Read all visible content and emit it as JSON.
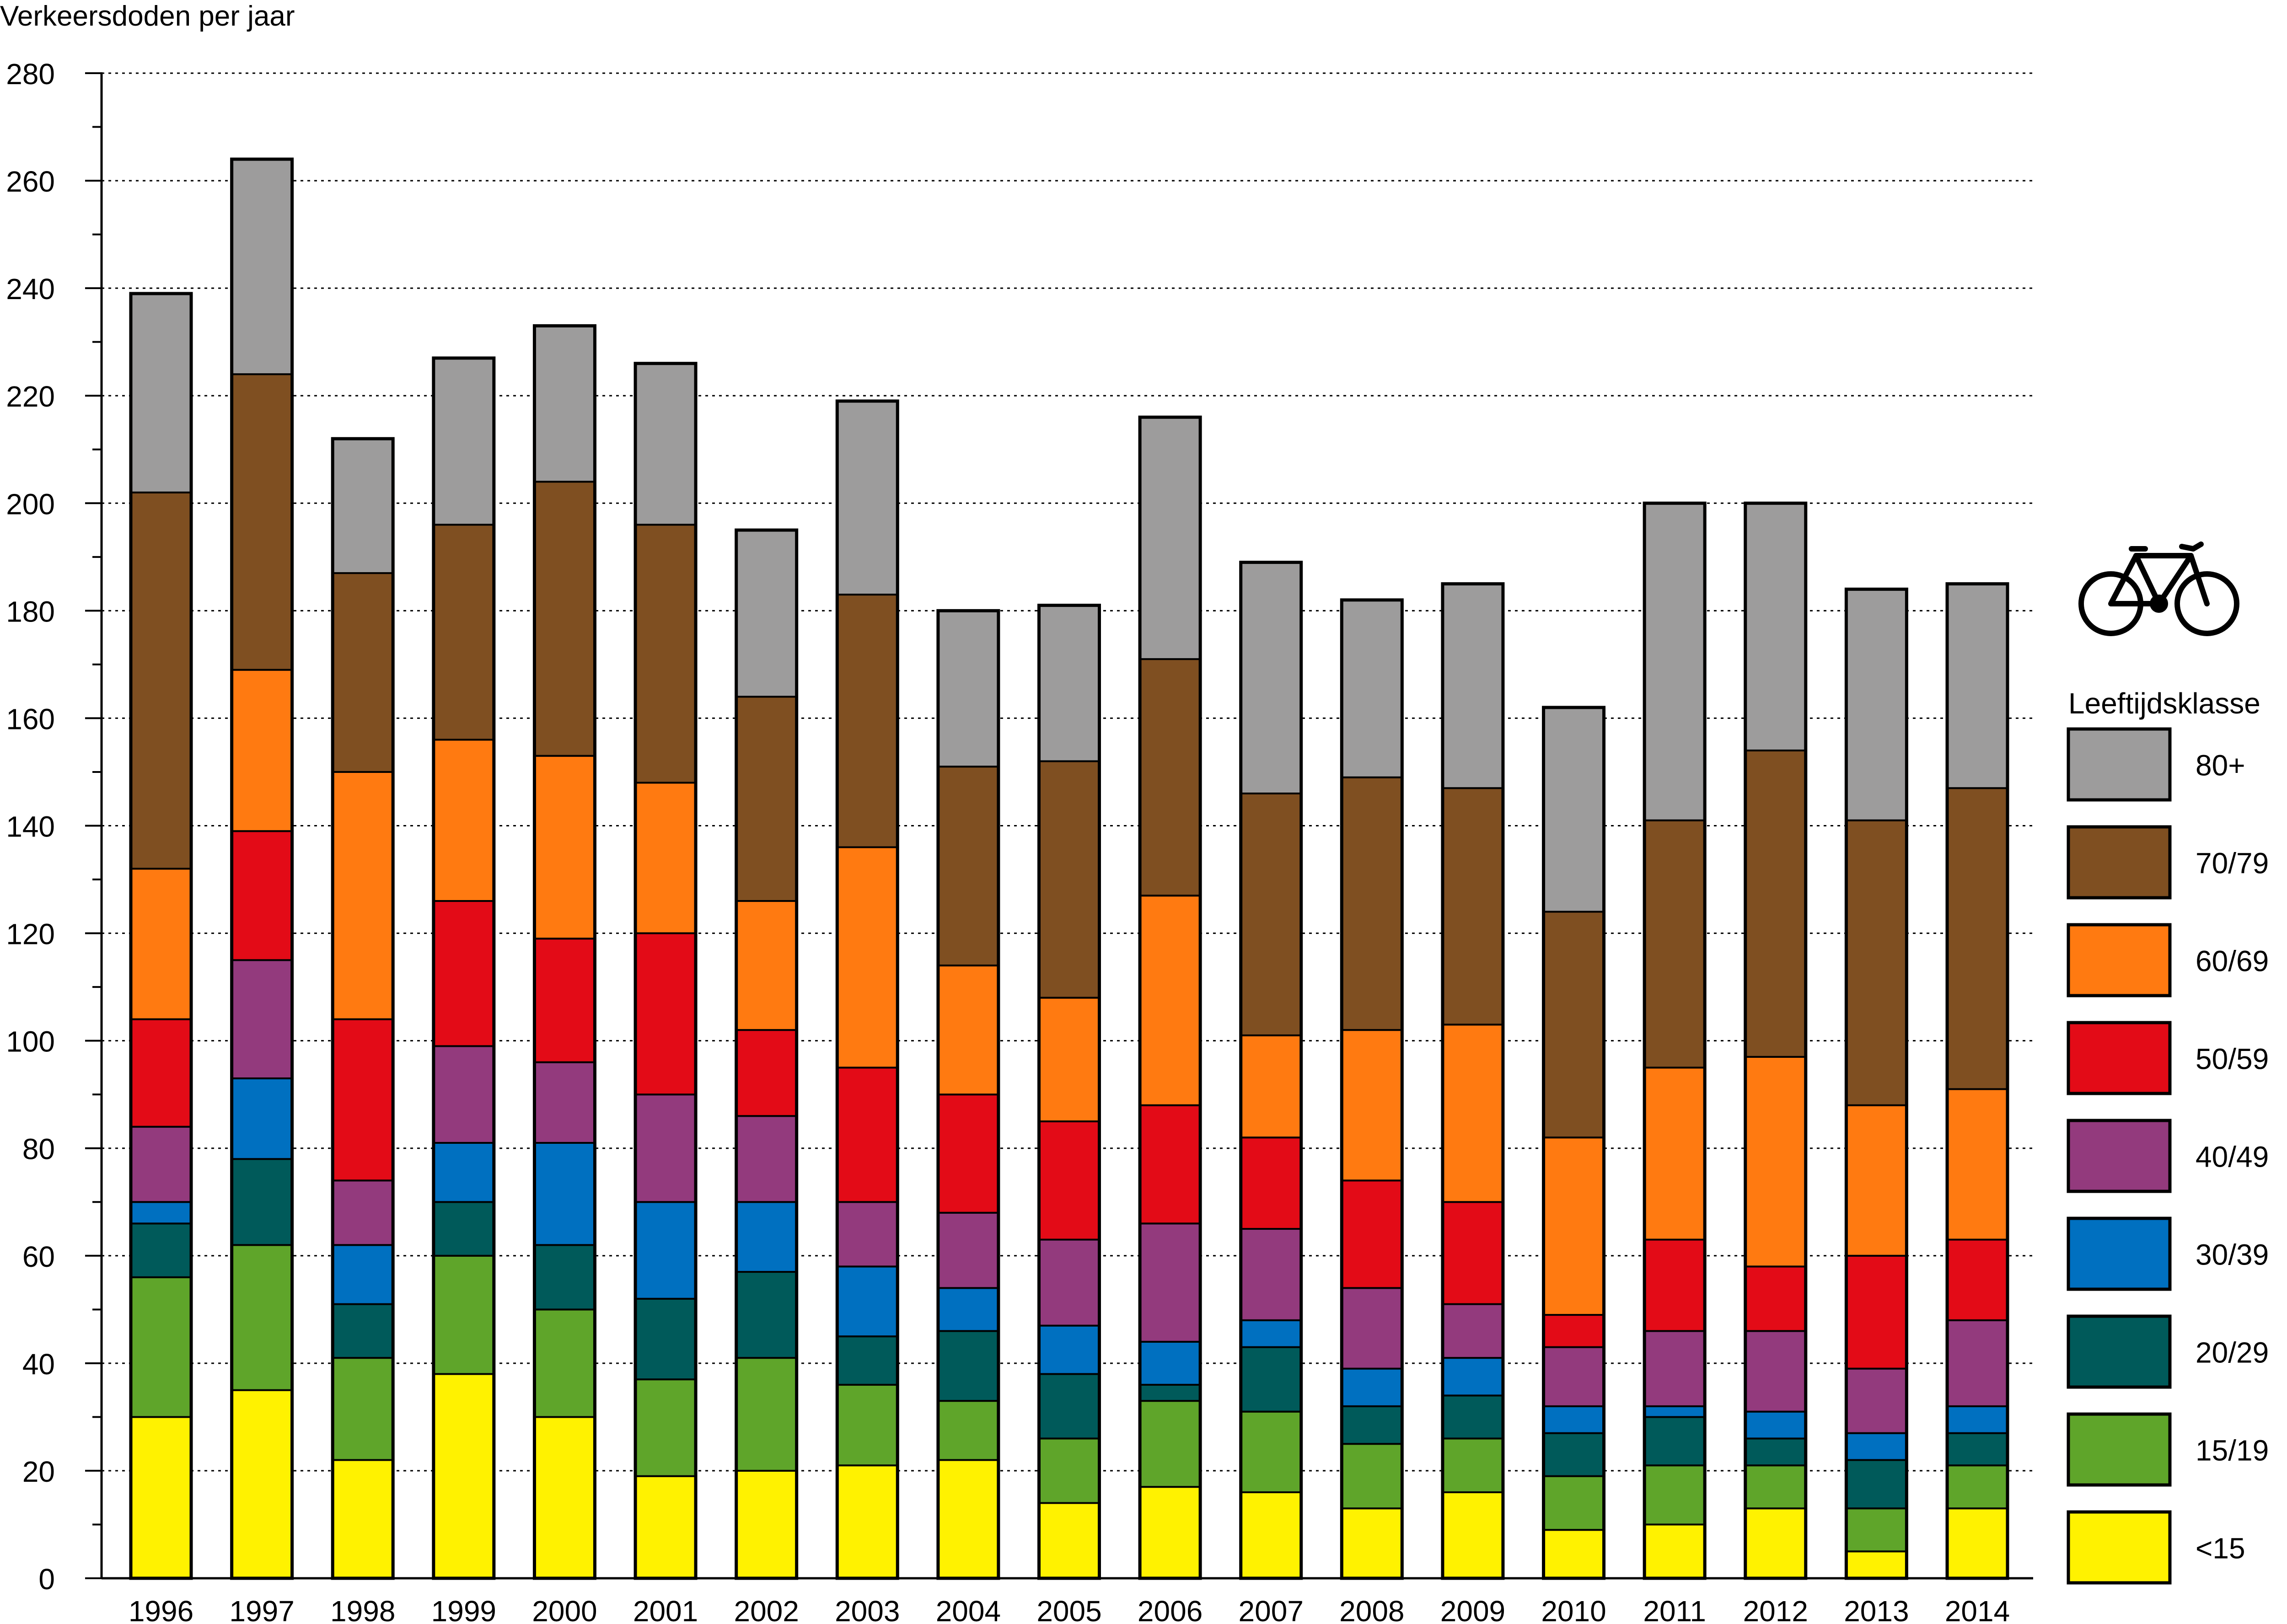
{
  "chart_data": {
    "type": "bar",
    "stacked": true,
    "title": "",
    "ylabel": "Verkeersdoden per jaar",
    "xlabel": "",
    "ylim": [
      0,
      280
    ],
    "yticks": [
      0,
      20,
      40,
      60,
      80,
      100,
      120,
      140,
      160,
      180,
      200,
      220,
      240,
      260,
      280
    ],
    "grid": "horizontal-dotted",
    "legend_title": "Leeftijdsklasse",
    "legend_position": "right",
    "legend_icon": "bicycle-icon",
    "categories": [
      "1996",
      "1997",
      "1998",
      "1999",
      "2000",
      "2001",
      "2002",
      "2003",
      "2004",
      "2005",
      "2006",
      "2007",
      "2008",
      "2009",
      "2010",
      "2011",
      "2012",
      "2013",
      "2014"
    ],
    "series": [
      {
        "name": "<15",
        "color": "#fff200",
        "values": [
          30,
          35,
          22,
          38,
          30,
          19,
          20,
          21,
          22,
          14,
          17,
          16,
          13,
          16,
          9,
          10,
          13,
          5,
          13
        ]
      },
      {
        "name": "15/19",
        "color": "#5fa52a",
        "values": [
          26,
          27,
          19,
          22,
          20,
          18,
          21,
          15,
          11,
          12,
          16,
          15,
          12,
          10,
          10,
          11,
          8,
          8,
          8
        ]
      },
      {
        "name": "20/29",
        "color": "#005a5a",
        "values": [
          10,
          16,
          10,
          10,
          12,
          15,
          16,
          9,
          13,
          12,
          3,
          12,
          7,
          8,
          8,
          9,
          5,
          9,
          6
        ]
      },
      {
        "name": "30/39",
        "color": "#0070c0",
        "values": [
          4,
          15,
          11,
          11,
          19,
          18,
          13,
          13,
          8,
          9,
          8,
          5,
          7,
          7,
          5,
          2,
          5,
          5,
          5
        ]
      },
      {
        "name": "40/49",
        "color": "#933a7d",
        "values": [
          14,
          22,
          12,
          18,
          15,
          20,
          16,
          12,
          14,
          16,
          22,
          17,
          15,
          10,
          11,
          14,
          15,
          12,
          16
        ]
      },
      {
        "name": "50/59",
        "color": "#e30b17",
        "values": [
          20,
          24,
          30,
          27,
          23,
          30,
          16,
          25,
          22,
          22,
          22,
          17,
          20,
          19,
          6,
          17,
          12,
          21,
          15
        ]
      },
      {
        "name": "60/69",
        "color": "#ff7a11",
        "values": [
          28,
          30,
          46,
          30,
          34,
          28,
          24,
          41,
          24,
          23,
          39,
          19,
          28,
          33,
          33,
          32,
          39,
          28,
          28
        ]
      },
      {
        "name": "70/79",
        "color": "#7f4f21",
        "values": [
          70,
          55,
          37,
          40,
          51,
          48,
          38,
          47,
          37,
          44,
          44,
          45,
          47,
          44,
          42,
          46,
          57,
          53,
          56
        ]
      },
      {
        "name": "80+",
        "color": "#9d9c9c",
        "values": [
          37,
          40,
          25,
          31,
          29,
          30,
          31,
          36,
          29,
          29,
          45,
          43,
          33,
          38,
          38,
          59,
          46,
          43,
          38
        ]
      }
    ]
  }
}
